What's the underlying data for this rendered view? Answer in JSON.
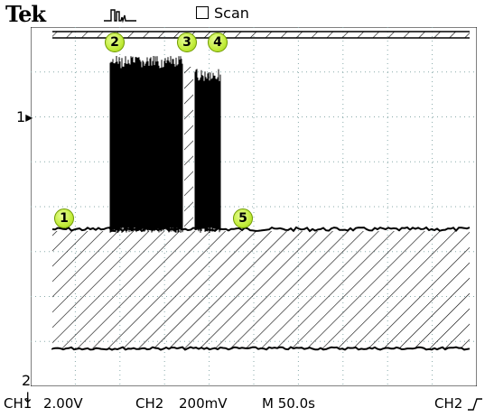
{
  "header": {
    "brand": "Tek",
    "trigger_icon": "acquisition-trigger-icon",
    "mode_label": "Scan"
  },
  "markers": {
    "ch1": "1",
    "ch2": "2"
  },
  "annotations": [
    "1",
    "2",
    "3",
    "4",
    "5"
  ],
  "footer": {
    "ch1_label": "CH1",
    "ch1_scale": "2.00V",
    "ch2_label": "CH2",
    "ch2_scale": "200mV",
    "timebase": "M 50.0s",
    "trigger_source": "CH2",
    "trigger_slope_icon": "rising-edge-icon"
  }
}
